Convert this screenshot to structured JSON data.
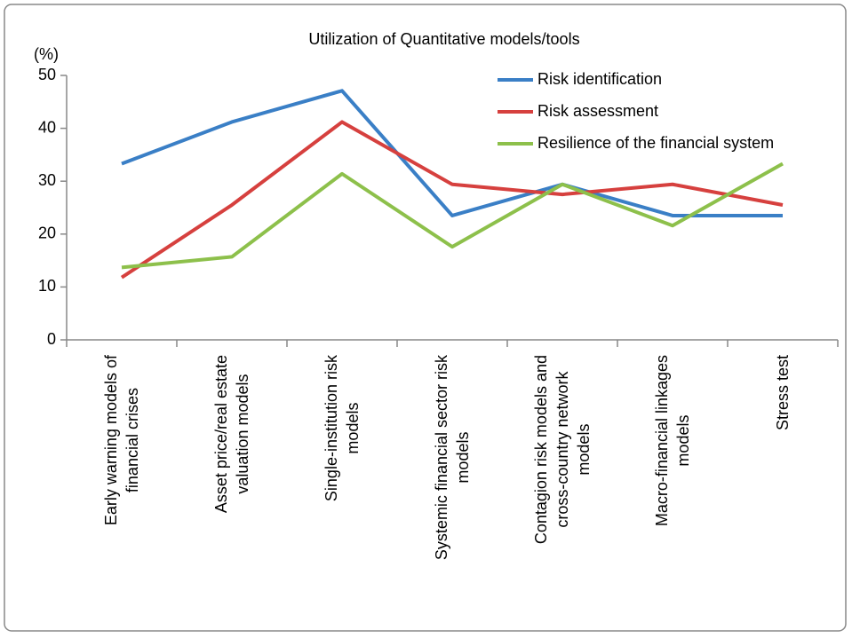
{
  "chart_data": {
    "type": "line",
    "title": "Utilization of Quantitative models/tools",
    "y_label": "(%)",
    "categories": [
      "Early warning models of\nfinancial crises",
      "Asset price/real estate\nvaluation models",
      "Single-institution risk\nmodels",
      "Systemic financial sector risk\nmodels",
      "Contagion risk models and\ncross-country network\nmodels",
      "Macro-financial linkages\nmodels",
      "Stress test"
    ],
    "series": [
      {
        "name": "Risk identification",
        "color": "#3a7fc6",
        "values": [
          33.3,
          41.2,
          47.1,
          23.5,
          29.4,
          23.5,
          23.5
        ]
      },
      {
        "name": "Risk assessment",
        "color": "#d6403e",
        "values": [
          11.8,
          25.5,
          41.2,
          29.4,
          27.5,
          29.4,
          25.5
        ]
      },
      {
        "name": "Resilience of the financial system",
        "color": "#8dc04b",
        "values": [
          13.7,
          15.7,
          31.4,
          17.6,
          29.4,
          21.6,
          33.3
        ]
      }
    ],
    "ylim": [
      0,
      50
    ],
    "yticks": [
      0,
      10,
      20,
      30,
      40,
      50
    ],
    "legend": "upper right"
  }
}
